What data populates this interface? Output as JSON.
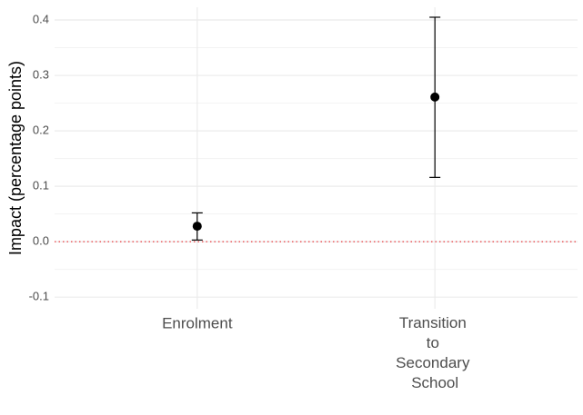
{
  "chart_data": {
    "type": "pointrange",
    "y_label": "Impact (percentage points)",
    "categories": [
      "Enrolment",
      "Transition to Secondary School"
    ],
    "series": [
      {
        "color": "#000000",
        "values": [
          0.028,
          0.261
        ],
        "ci_lower": [
          0.003,
          0.116
        ],
        "ci_upper": [
          0.052,
          0.405
        ]
      }
    ],
    "ylim": [
      -0.121,
      0.423
    ],
    "yticks": [
      -0.1,
      {
        "value": 0,
        "label": "0.0"
      },
      0.1,
      0.2,
      0.3,
      0.4
    ],
    "grid": true,
    "reference_line": {
      "value": 0,
      "color": "#e8383d"
    }
  }
}
